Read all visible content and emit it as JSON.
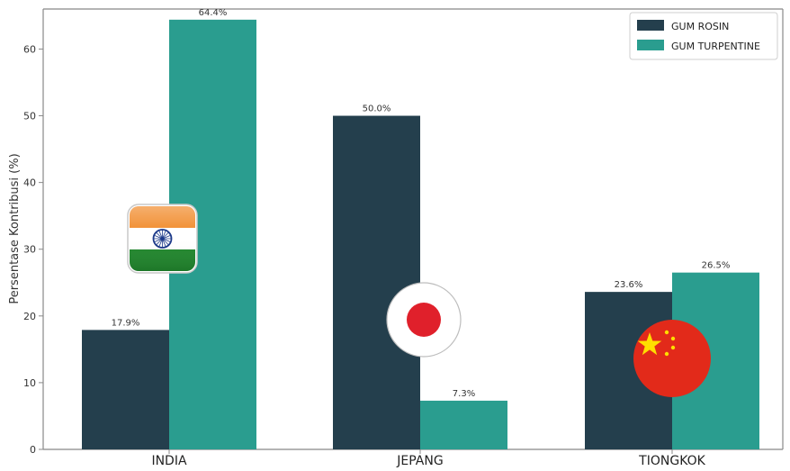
{
  "chart_data": {
    "type": "bar",
    "title": "",
    "xlabel": "",
    "ylabel": "Persentase Kontribusi (%)",
    "ylim": [
      0,
      66
    ],
    "yticks": [
      0,
      10,
      20,
      30,
      40,
      50,
      60
    ],
    "grid": false,
    "legend_position": "top-right",
    "categories": [
      "INDIA",
      "JEPANG",
      "TIONGKOK"
    ],
    "category_icons": [
      "india-flag-icon",
      "japan-flag-icon",
      "china-flag-icon"
    ],
    "series": [
      {
        "name": "GUM ROSIN",
        "color": "#243f4d",
        "values": [
          17.9,
          50.0,
          23.6
        ],
        "labels": [
          "17.9%",
          "50.0%",
          "23.6%"
        ]
      },
      {
        "name": "GUM TURPENTINE",
        "color": "#2a9d8f",
        "values": [
          64.4,
          7.3,
          26.5
        ],
        "labels": [
          "64.4%",
          "7.3%",
          "26.5%"
        ]
      }
    ]
  }
}
